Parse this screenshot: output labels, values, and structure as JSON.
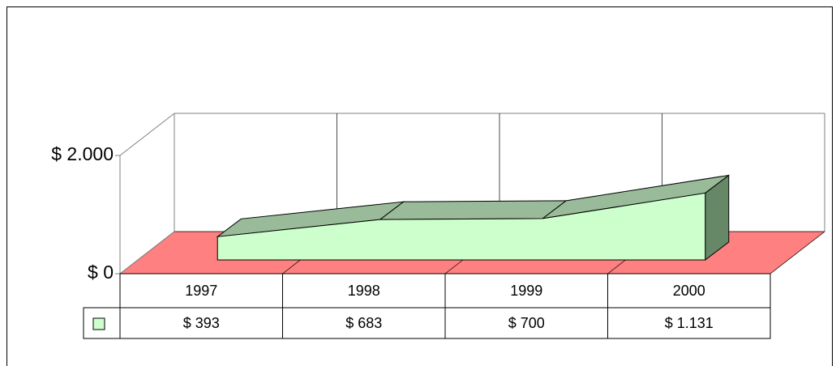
{
  "chart_data": {
    "type": "line3d",
    "categories": [
      "1997",
      "1998",
      "1999",
      "2000"
    ],
    "series": [
      {
        "color": "#ccffcc",
        "values": [
          393,
          683,
          700,
          1131
        ],
        "value_labels": [
          "$ 393",
          "$ 683",
          "$ 700",
          "$ 1.131"
        ]
      }
    ],
    "ylim": [
      0,
      2000
    ],
    "yticks": [
      {
        "value": 0,
        "label": "$ 0"
      },
      {
        "value": 2000,
        "label": "$ 2.000"
      }
    ],
    "grid": true
  }
}
